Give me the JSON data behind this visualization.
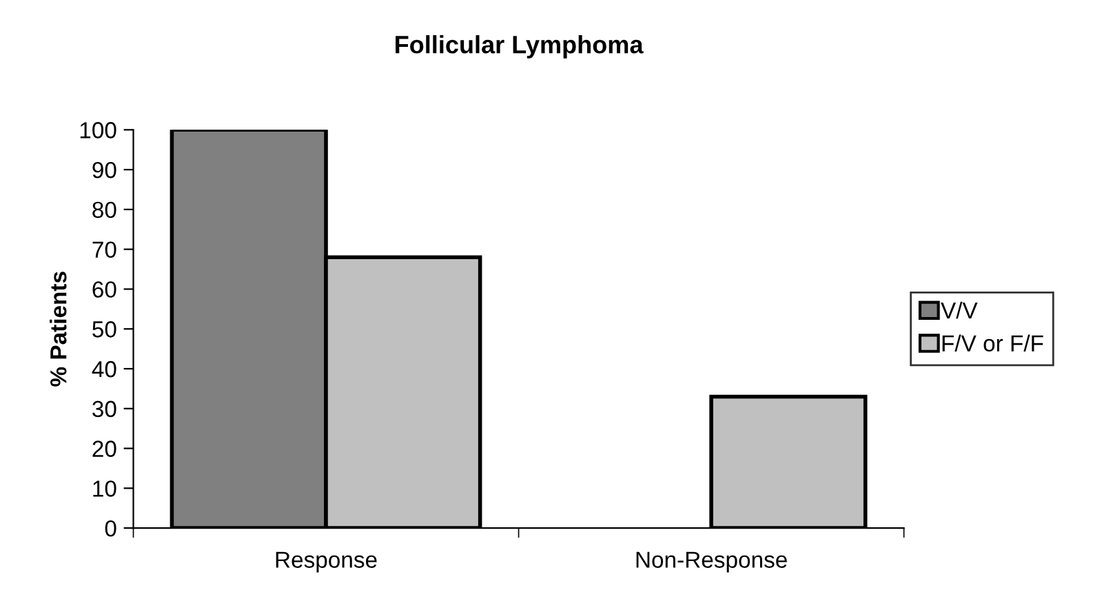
{
  "chart_data": {
    "type": "bar",
    "title": "Follicular Lymphoma",
    "ylabel": "% Patients",
    "categories": [
      "Response",
      "Non-Response"
    ],
    "series": [
      {
        "name": "V/V",
        "color": "#808080",
        "values": [
          100,
          null
        ]
      },
      {
        "name": "F/V or F/F",
        "color": "#c0c0c0",
        "values": [
          68,
          33
        ]
      }
    ],
    "ylim": [
      0,
      100
    ],
    "yticks": [
      0,
      10,
      20,
      30,
      40,
      50,
      60,
      70,
      80,
      90,
      100
    ],
    "grid": false,
    "legend": "right"
  }
}
